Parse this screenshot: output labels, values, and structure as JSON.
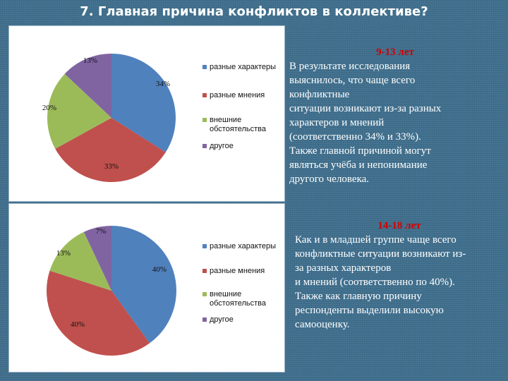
{
  "title": "7. Главная причина конфликтов в коллективе?",
  "colors": {
    "blue": "#4f81bd",
    "red": "#c0504d",
    "green": "#9bbb59",
    "purple": "#8064a2"
  },
  "legend_labels": [
    "разные характеры",
    "разные мнения",
    "внешние обстоятельства",
    "другое"
  ],
  "chart_data": [
    {
      "type": "pie",
      "categories": [
        "разные характеры",
        "разные мнения",
        "внешние обстоятельства",
        "другое"
      ],
      "values": [
        34,
        33,
        20,
        13
      ],
      "data_labels": [
        "34%",
        "33%",
        "20%",
        "13%"
      ]
    },
    {
      "type": "pie",
      "categories": [
        "разные характеры",
        "разные мнения",
        "внешние обстоятельства",
        "другое"
      ],
      "values": [
        40,
        40,
        13,
        7
      ],
      "data_labels": [
        "40%",
        "40%",
        "13%",
        "7%"
      ]
    }
  ],
  "section_1": {
    "heading": "9-13 лет",
    "body": "В результате исследования\nвыяснилось, что чаще всего\nконфликтные\nситуации возникают из-за разных\nхарактеров и мнений\n(соответственно 34% и 33%).\nТакже главной причиной могут\nявляться учёба и непонимание\nдругого человека."
  },
  "section_2": {
    "heading": "14-18 лет",
    "body": "Как и в младшей группе чаще всего\nконфликтные ситуации возникают из-\nза разных характеров\n и мнений (соответственно по 40%).\nТакже  как главную причину\nреспонденты выделили высокую\nсамооценку."
  }
}
